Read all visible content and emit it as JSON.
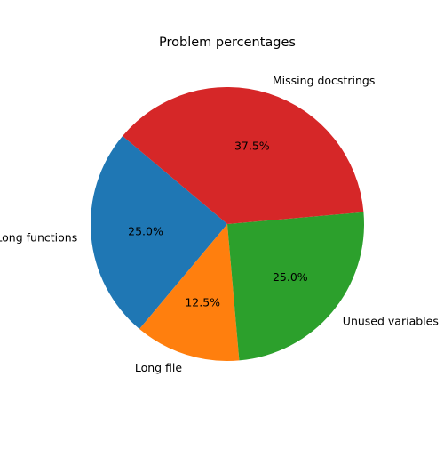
{
  "chart_data": {
    "type": "pie",
    "title": "Problem percentages",
    "categories": [
      "Long functions",
      "Long file",
      "Unused variables",
      "Missing docstrings"
    ],
    "values": [
      25.0,
      12.5,
      25.0,
      37.5
    ],
    "value_labels": [
      "25.0%",
      "12.5%",
      "25.0%",
      "37.5%"
    ],
    "colors": [
      "#1f77b4",
      "#ff7f0e",
      "#2ca02c",
      "#d62728"
    ],
    "start_angle_deg": 140,
    "direction": "counterclockwise",
    "legend": "none"
  }
}
